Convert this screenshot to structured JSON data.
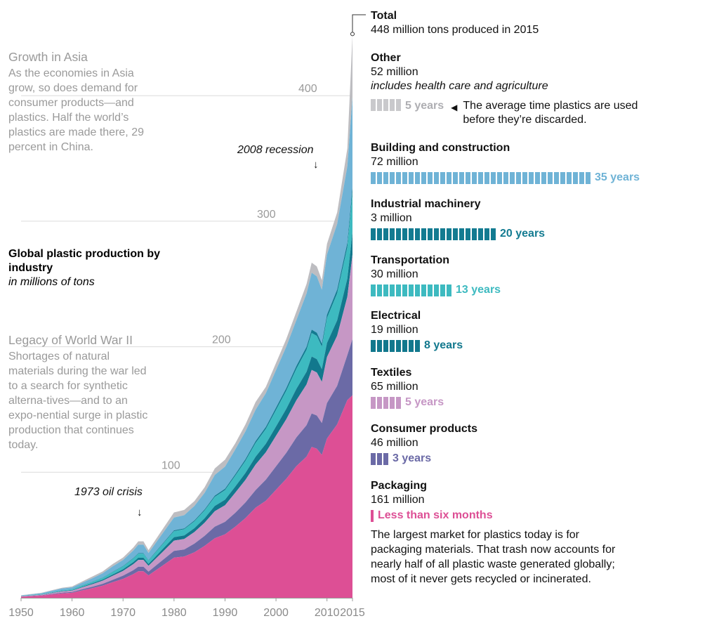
{
  "notes": {
    "asia": {
      "title": "Growth in Asia",
      "text": "As the economies in Asia grow, so does demand for consumer products—and plastics. Half the world’s plastics are made there, 29 percent in China."
    },
    "ww2": {
      "title": "Legacy of World War II",
      "text": "Shortages of natural materials during the war led to a search for synthetic alterna-tives—and to an expo-nential surge in plastic production that continues today."
    }
  },
  "chart_title": {
    "line1": "Global plastic production by industry",
    "line2": "in millions of tons"
  },
  "annotations": {
    "oil_crisis": "1973 oil crisis",
    "recession": "2008 recession",
    "arrow": "↓"
  },
  "total": {
    "name": "Total",
    "text": "448 million tons produced in 2015"
  },
  "industries": [
    {
      "name": "Other",
      "amount": "52 million",
      "sub": "includes health care and agriculture",
      "years_label": "5 years",
      "cells": 5,
      "color": "#c9c9cc",
      "label_color": "#aeaeb2",
      "note": "The average time plastics are used before they’re discarded."
    },
    {
      "name": "Building and construction",
      "amount": "72 million",
      "years_label": "35 years",
      "cells": 35,
      "color": "#6fb3d6"
    },
    {
      "name": "Industrial machinery",
      "amount": "3 million",
      "years_label": "20 years",
      "cells": 20,
      "color": "#137b91"
    },
    {
      "name": "Transportation",
      "amount": "30 million",
      "years_label": "13 years",
      "cells": 13,
      "color": "#3dbac0"
    },
    {
      "name": "Electrical",
      "amount": "19 million",
      "years_label": "8 years",
      "cells": 8,
      "color": "#12788d"
    },
    {
      "name": "Textiles",
      "amount": "65 million",
      "years_label": "5 years",
      "cells": 5,
      "color": "#c697c5"
    },
    {
      "name": "Consumer products",
      "amount": "46 million",
      "years_label": "3 years",
      "cells": 3,
      "color": "#6b6aa6"
    },
    {
      "name": "Packaging",
      "amount": "161 million",
      "years_label": "Less than six months",
      "cells": 1,
      "color": "#dd4f95"
    }
  ],
  "packaging_text": "The largest market for plastics today is for packaging materials. That trash now accounts for nearly half of all plastic waste generated globally; most of it never gets recycled or incinerated.",
  "chart_data": {
    "type": "area",
    "stacked": true,
    "x": [
      1950,
      1952,
      1954,
      1956,
      1958,
      1960,
      1962,
      1964,
      1966,
      1968,
      1970,
      1972,
      1973,
      1974,
      1975,
      1976,
      1978,
      1980,
      1982,
      1984,
      1986,
      1988,
      1990,
      1992,
      1994,
      1996,
      1998,
      2000,
      2002,
      2004,
      2006,
      2007,
      2008,
      2009,
      2010,
      2012,
      2014,
      2015
    ],
    "totals": [
      2,
      3,
      4,
      6,
      8,
      9,
      13,
      17,
      21,
      27,
      32,
      40,
      45,
      45,
      38,
      44,
      56,
      68,
      70,
      77,
      88,
      103,
      110,
      123,
      138,
      156,
      168,
      187,
      206,
      228,
      250,
      267,
      264,
      253,
      282,
      307,
      358,
      448
    ],
    "series": [
      {
        "name": "Packaging",
        "color": "#dd4f95",
        "shares": [
          0.43,
          0.43,
          0.43,
          0.44,
          0.44,
          0.44,
          0.45,
          0.45,
          0.46,
          0.46,
          0.47,
          0.47,
          0.47,
          0.47,
          0.47,
          0.47,
          0.47,
          0.47,
          0.47,
          0.47,
          0.47,
          0.46,
          0.46,
          0.46,
          0.46,
          0.46,
          0.46,
          0.46,
          0.46,
          0.46,
          0.45,
          0.45,
          0.45,
          0.45,
          0.45,
          0.45,
          0.44,
          0.36
        ]
      },
      {
        "name": "Consumer products",
        "color": "#6b6aa6",
        "shares": [
          0.07,
          0.07,
          0.07,
          0.07,
          0.07,
          0.07,
          0.07,
          0.07,
          0.07,
          0.07,
          0.08,
          0.08,
          0.08,
          0.08,
          0.08,
          0.08,
          0.08,
          0.08,
          0.08,
          0.09,
          0.09,
          0.09,
          0.09,
          0.09,
          0.09,
          0.09,
          0.1,
          0.1,
          0.1,
          0.1,
          0.1,
          0.1,
          0.1,
          0.1,
          0.1,
          0.1,
          0.1,
          0.1
        ]
      },
      {
        "name": "Textiles",
        "color": "#c697c5",
        "shares": [
          0.12,
          0.12,
          0.12,
          0.12,
          0.12,
          0.12,
          0.12,
          0.12,
          0.12,
          0.12,
          0.12,
          0.12,
          0.12,
          0.12,
          0.12,
          0.12,
          0.12,
          0.12,
          0.12,
          0.12,
          0.12,
          0.12,
          0.12,
          0.13,
          0.13,
          0.13,
          0.13,
          0.13,
          0.13,
          0.13,
          0.13,
          0.13,
          0.13,
          0.13,
          0.13,
          0.13,
          0.13,
          0.15
        ]
      },
      {
        "name": "Electrical",
        "color": "#12788d",
        "shares": [
          0.04,
          0.04,
          0.04,
          0.04,
          0.04,
          0.04,
          0.04,
          0.04,
          0.04,
          0.04,
          0.04,
          0.04,
          0.04,
          0.04,
          0.04,
          0.04,
          0.04,
          0.04,
          0.04,
          0.04,
          0.04,
          0.04,
          0.04,
          0.04,
          0.04,
          0.04,
          0.04,
          0.04,
          0.04,
          0.04,
          0.04,
          0.04,
          0.04,
          0.04,
          0.04,
          0.04,
          0.04,
          0.04
        ]
      },
      {
        "name": "Transportation",
        "color": "#3dbac0",
        "shares": [
          0.07,
          0.07,
          0.07,
          0.07,
          0.07,
          0.07,
          0.07,
          0.07,
          0.07,
          0.07,
          0.07,
          0.07,
          0.07,
          0.07,
          0.07,
          0.07,
          0.07,
          0.07,
          0.07,
          0.07,
          0.07,
          0.07,
          0.07,
          0.07,
          0.07,
          0.07,
          0.07,
          0.07,
          0.07,
          0.07,
          0.07,
          0.07,
          0.07,
          0.07,
          0.07,
          0.07,
          0.07,
          0.07
        ]
      },
      {
        "name": "Industrial machinery",
        "color": "#137b91",
        "shares": [
          0.01,
          0.01,
          0.01,
          0.01,
          0.01,
          0.01,
          0.01,
          0.01,
          0.01,
          0.01,
          0.01,
          0.01,
          0.01,
          0.01,
          0.01,
          0.01,
          0.01,
          0.01,
          0.01,
          0.01,
          0.01,
          0.01,
          0.01,
          0.01,
          0.01,
          0.01,
          0.01,
          0.01,
          0.01,
          0.01,
          0.01,
          0.01,
          0.01,
          0.01,
          0.01,
          0.01,
          0.01,
          0.01
        ]
      },
      {
        "name": "Building and construction",
        "color": "#6fb3d6",
        "shares": [
          0.17,
          0.17,
          0.17,
          0.17,
          0.17,
          0.17,
          0.16,
          0.16,
          0.16,
          0.16,
          0.15,
          0.15,
          0.15,
          0.15,
          0.15,
          0.15,
          0.15,
          0.15,
          0.15,
          0.15,
          0.15,
          0.16,
          0.16,
          0.16,
          0.16,
          0.16,
          0.16,
          0.16,
          0.16,
          0.16,
          0.17,
          0.17,
          0.17,
          0.17,
          0.17,
          0.17,
          0.17,
          0.16
        ]
      }
    ],
    "top_series": {
      "name": "Other",
      "color": "#bdbdc1"
    },
    "x_ticks": [
      "1950",
      "1960",
      "1970",
      "1980",
      "1990",
      "2000",
      "2010",
      "2015"
    ],
    "x_tick_values": [
      1950,
      1960,
      1970,
      1980,
      1990,
      2000,
      2010,
      2015
    ],
    "y_ticks": [
      "100",
      "200",
      "300",
      "400"
    ],
    "y_tick_values": [
      100,
      200,
      300,
      400
    ],
    "xlim": [
      1950,
      2015
    ],
    "ylim": [
      0,
      448
    ],
    "grid": true
  }
}
